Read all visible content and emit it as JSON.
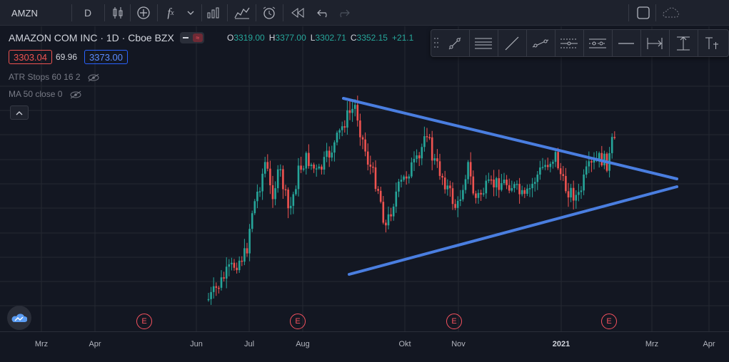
{
  "toolbar": {
    "symbol": "AMZN",
    "interval": "D",
    "icons": [
      "candles-icon",
      "plus-circle-icon",
      "fx-icon",
      "chevron-down-icon",
      "bar-chart-icon",
      "templates-icon",
      "alert-icon",
      "replay-icon",
      "undo-icon",
      "redo-icon",
      "layout-icon",
      "cloud-icon"
    ]
  },
  "legend": {
    "title": "AMAZON COM INC · 1D · Cboe BZX",
    "ohlc": [
      {
        "k": "O",
        "v": "3319.00"
      },
      {
        "k": "H",
        "v": "3377.00"
      },
      {
        "k": "L",
        "v": "3302.71"
      },
      {
        "k": "C",
        "v": "3352.15"
      }
    ],
    "change": "+21.1",
    "bid": "3303.04",
    "spread": "69.96",
    "ask": "3373.00",
    "indicator1": "ATR Stops 60 16 2",
    "indicator2": "MA 50 close 0",
    "collapse": "^"
  },
  "drawing_toolbar": {
    "tools": [
      "trend-line-icon",
      "parallel-lines-icon",
      "ray-icon",
      "extended-line-icon",
      "pitchfork-icon",
      "channel-icon",
      "horizontal-ray-icon",
      "date-range-icon",
      "price-range-icon",
      "text-icon"
    ]
  },
  "xaxis": {
    "labels": [
      "Mrz",
      "Apr",
      "Jun",
      "Jul",
      "Aug",
      "Okt",
      "Nov",
      "2021",
      "Mrz",
      "Apr"
    ]
  },
  "earnings": {
    "label": "E"
  },
  "colors": {
    "up": "#26a69a",
    "down": "#ef5350",
    "trendline": "#4a7ee0",
    "bg": "#131722",
    "grid": "#242832"
  },
  "chart_data": {
    "type": "candlestick",
    "symbol": "AMZN",
    "interval": "1D",
    "last": {
      "open": 3319.0,
      "high": 3377.0,
      "low": 3302.71,
      "close": 3352.15,
      "change": 21.1
    },
    "trendlines": [
      "upper-descending",
      "lower-ascending"
    ]
  }
}
